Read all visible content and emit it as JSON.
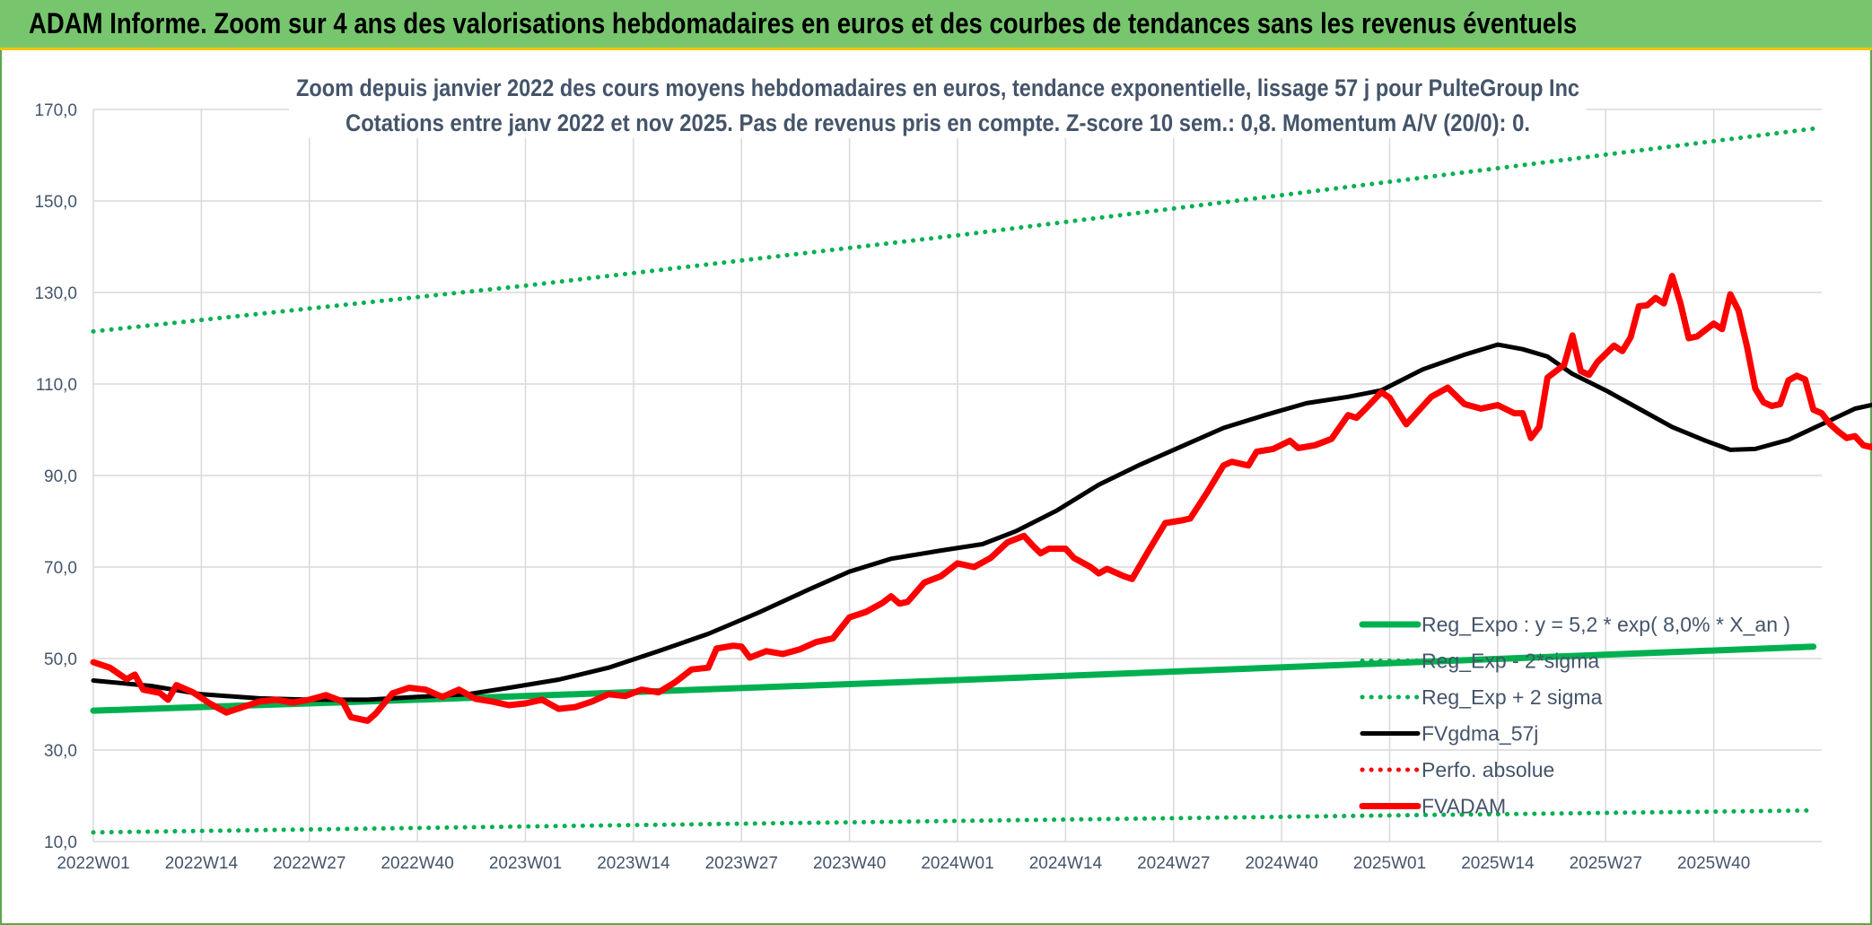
{
  "banner": {
    "title": "ADAM Informe. Zoom sur 4 ans des valorisations hebdomadaires en euros et des courbes de tendances sans les revenus éventuels"
  },
  "chart_data": {
    "type": "line",
    "title": "Zoom depuis janvier 2022 des cours moyens hebdomadaires en euros, tendance exponentielle, lissage 57 j pour PulteGroup Inc",
    "subtitle": "Cotations entre janv 2022 et nov 2025. Pas de revenus pris en compte. Z-score 10 sem.: 0,8. Momentum A/V (20/0): 0.",
    "xlabel": "",
    "ylabel": "",
    "ylim": [
      10,
      170
    ],
    "yticks": [
      "10,0",
      "30,0",
      "50,0",
      "70,0",
      "90,0",
      "110,0",
      "130,0",
      "150,0",
      "170,0"
    ],
    "x_tick_labels": [
      "2022W01",
      "2022W14",
      "2022W27",
      "2022W40",
      "2023W01",
      "2023W14",
      "2023W27",
      "2023W40",
      "2024W01",
      "2024W14",
      "2024W27",
      "2024W40",
      "2025W01",
      "2025W14",
      "2025W27",
      "2025W40"
    ],
    "week_count": 208,
    "grid": true,
    "legend_position": "bottom-right",
    "series": [
      {
        "name": "Reg_Expo : y = 5,2 * exp( 8,0% *  X_an )",
        "color": "#00b050",
        "style": "solid-thick",
        "values": [
          [
            0,
            38.6
          ],
          [
            52,
            41.8
          ],
          [
            104,
            45.3
          ],
          [
            156,
            49.0
          ],
          [
            207,
            52.6
          ]
        ]
      },
      {
        "name": "Reg_Exp - 2*sigma",
        "color": "#00b050",
        "style": "dotted",
        "values": [
          [
            0,
            12.0
          ],
          [
            52,
            13.3
          ],
          [
            104,
            14.5
          ],
          [
            156,
            15.7
          ],
          [
            207,
            16.8
          ]
        ]
      },
      {
        "name": "Reg_Exp + 2 sigma",
        "color": "#00b050",
        "style": "dotted",
        "values": [
          [
            0,
            121.5
          ],
          [
            52,
            131.5
          ],
          [
            104,
            142.5
          ],
          [
            156,
            154.2
          ],
          [
            207,
            165.8
          ]
        ]
      },
      {
        "name": "FVgdma_57j",
        "color": "#000000",
        "style": "solid",
        "values": [
          [
            0,
            45.2
          ],
          [
            7,
            44.0
          ],
          [
            13,
            42.2
          ],
          [
            20,
            41.3
          ],
          [
            26,
            41.0
          ],
          [
            33,
            41.0
          ],
          [
            39,
            41.6
          ],
          [
            45,
            42.2
          ],
          [
            50,
            43.6
          ],
          [
            56,
            45.4
          ],
          [
            62,
            48.0
          ],
          [
            68,
            51.6
          ],
          [
            74,
            55.4
          ],
          [
            80,
            60.0
          ],
          [
            86,
            65.0
          ],
          [
            91,
            69.0
          ],
          [
            96,
            71.8
          ],
          [
            102,
            73.6
          ],
          [
            107,
            75.0
          ],
          [
            111,
            77.8
          ],
          [
            116,
            82.4
          ],
          [
            121,
            88.0
          ],
          [
            126,
            92.4
          ],
          [
            131,
            96.4
          ],
          [
            136,
            100.4
          ],
          [
            141,
            103.2
          ],
          [
            146,
            105.8
          ],
          [
            151,
            107.2
          ],
          [
            155,
            108.6
          ],
          [
            160,
            113.2
          ],
          [
            165,
            116.4
          ],
          [
            169,
            118.6
          ],
          [
            172,
            117.6
          ],
          [
            175,
            116.0
          ],
          [
            178,
            112.2
          ],
          [
            182,
            108.6
          ],
          [
            186,
            104.6
          ],
          [
            190,
            100.6
          ],
          [
            194,
            97.6
          ],
          [
            197,
            95.6
          ],
          [
            200,
            95.8
          ],
          [
            204,
            97.8
          ],
          [
            208,
            101.2
          ],
          [
            212,
            104.6
          ],
          [
            217,
            106.6
          ],
          [
            221,
            106.0
          ],
          [
            226,
            105.8
          ]
        ]
      },
      {
        "name": "Perfo. absolue",
        "color": "#ff0000",
        "style": "dotted",
        "values": []
      },
      {
        "name": "FVADAM",
        "color": "#ff0000",
        "style": "solid-thick",
        "values": [
          [
            0,
            49.2
          ],
          [
            2,
            48.0
          ],
          [
            4,
            45.5
          ],
          [
            5,
            46.5
          ],
          [
            6,
            43.2
          ],
          [
            8,
            42.5
          ],
          [
            9,
            41.0
          ],
          [
            10,
            44.2
          ],
          [
            12,
            42.6
          ],
          [
            14,
            40.2
          ],
          [
            16,
            38.2
          ],
          [
            18,
            39.4
          ],
          [
            20,
            40.6
          ],
          [
            22,
            41.0
          ],
          [
            24,
            40.4
          ],
          [
            26,
            41.0
          ],
          [
            28,
            42.0
          ],
          [
            30,
            40.6
          ],
          [
            31,
            37.2
          ],
          [
            33,
            36.4
          ],
          [
            34,
            38.0
          ],
          [
            36,
            42.4
          ],
          [
            38,
            43.6
          ],
          [
            40,
            43.2
          ],
          [
            42,
            41.6
          ],
          [
            44,
            43.2
          ],
          [
            46,
            41.2
          ],
          [
            48,
            40.6
          ],
          [
            50,
            39.8
          ],
          [
            52,
            40.2
          ],
          [
            54,
            41.0
          ],
          [
            56,
            39.0
          ],
          [
            58,
            39.4
          ],
          [
            60,
            40.6
          ],
          [
            62,
            42.2
          ],
          [
            64,
            41.8
          ],
          [
            66,
            43.2
          ],
          [
            68,
            42.6
          ],
          [
            70,
            44.8
          ],
          [
            72,
            47.6
          ],
          [
            74,
            48.0
          ],
          [
            75,
            52.2
          ],
          [
            77,
            52.8
          ],
          [
            78,
            52.6
          ],
          [
            79,
            50.2
          ],
          [
            81,
            51.6
          ],
          [
            83,
            51.0
          ],
          [
            85,
            52.0
          ],
          [
            87,
            53.6
          ],
          [
            89,
            54.4
          ],
          [
            91,
            59.0
          ],
          [
            93,
            60.2
          ],
          [
            95,
            62.2
          ],
          [
            96,
            63.6
          ],
          [
            97,
            62.0
          ],
          [
            98,
            62.4
          ],
          [
            100,
            66.6
          ],
          [
            102,
            68.0
          ],
          [
            104,
            70.8
          ],
          [
            106,
            70.0
          ],
          [
            108,
            72.0
          ],
          [
            110,
            75.4
          ],
          [
            112,
            76.8
          ],
          [
            113,
            74.8
          ],
          [
            114,
            73.0
          ],
          [
            115,
            74.0
          ],
          [
            117,
            74.0
          ],
          [
            118,
            72.0
          ],
          [
            120,
            70.0
          ],
          [
            121,
            68.6
          ],
          [
            122,
            69.6
          ],
          [
            124,
            68.0
          ],
          [
            125,
            67.4
          ],
          [
            127,
            73.6
          ],
          [
            129,
            79.6
          ],
          [
            131,
            80.2
          ],
          [
            132,
            80.6
          ],
          [
            134,
            86.2
          ],
          [
            136,
            92.2
          ],
          [
            137,
            93.0
          ],
          [
            139,
            92.2
          ],
          [
            140,
            95.2
          ],
          [
            142,
            95.8
          ],
          [
            144,
            97.6
          ],
          [
            145,
            96.0
          ],
          [
            147,
            96.6
          ],
          [
            149,
            98.0
          ],
          [
            151,
            103.2
          ],
          [
            152,
            102.6
          ],
          [
            153,
            104.4
          ],
          [
            155,
            108.2
          ],
          [
            156,
            107.0
          ],
          [
            157,
            104.0
          ],
          [
            158,
            101.2
          ],
          [
            159,
            103.2
          ],
          [
            161,
            107.2
          ],
          [
            163,
            109.2
          ],
          [
            165,
            105.6
          ],
          [
            167,
            104.6
          ],
          [
            169,
            105.4
          ],
          [
            171,
            103.6
          ],
          [
            172,
            103.6
          ],
          [
            173,
            98.2
          ],
          [
            174,
            100.6
          ],
          [
            175,
            111.4
          ],
          [
            177,
            114.2
          ],
          [
            178,
            120.6
          ],
          [
            179,
            112.8
          ],
          [
            180,
            112.0
          ],
          [
            181,
            114.8
          ],
          [
            183,
            118.4
          ],
          [
            184,
            117.2
          ],
          [
            185,
            120.2
          ],
          [
            186,
            127.0
          ],
          [
            187,
            127.2
          ],
          [
            188,
            128.8
          ],
          [
            189,
            127.6
          ],
          [
            190,
            133.6
          ],
          [
            191,
            127.6
          ],
          [
            192,
            120.0
          ],
          [
            193,
            120.4
          ],
          [
            195,
            123.2
          ],
          [
            196,
            122.0
          ],
          [
            197,
            129.6
          ],
          [
            198,
            126.0
          ],
          [
            199,
            118.2
          ],
          [
            200,
            109.0
          ],
          [
            201,
            106.0
          ],
          [
            202,
            105.2
          ],
          [
            203,
            105.6
          ],
          [
            204,
            110.8
          ],
          [
            205,
            111.8
          ],
          [
            206,
            111.0
          ],
          [
            207,
            104.4
          ],
          [
            208,
            103.6
          ],
          [
            209,
            101.2
          ],
          [
            210,
            99.6
          ],
          [
            211,
            98.2
          ],
          [
            212,
            98.6
          ],
          [
            213,
            96.6
          ],
          [
            214,
            96.2
          ],
          [
            215,
            97.8
          ],
          [
            216,
            92.2
          ],
          [
            217,
            86.8
          ],
          [
            218,
            83.2
          ],
          [
            219,
            87.2
          ],
          [
            220,
            90.2
          ],
          [
            221,
            91.0
          ],
          [
            222,
            92.6
          ],
          [
            223,
            89.2
          ],
          [
            224,
            87.2
          ],
          [
            225,
            87.6
          ],
          [
            226,
            90.4
          ]
        ]
      }
    ]
  }
}
